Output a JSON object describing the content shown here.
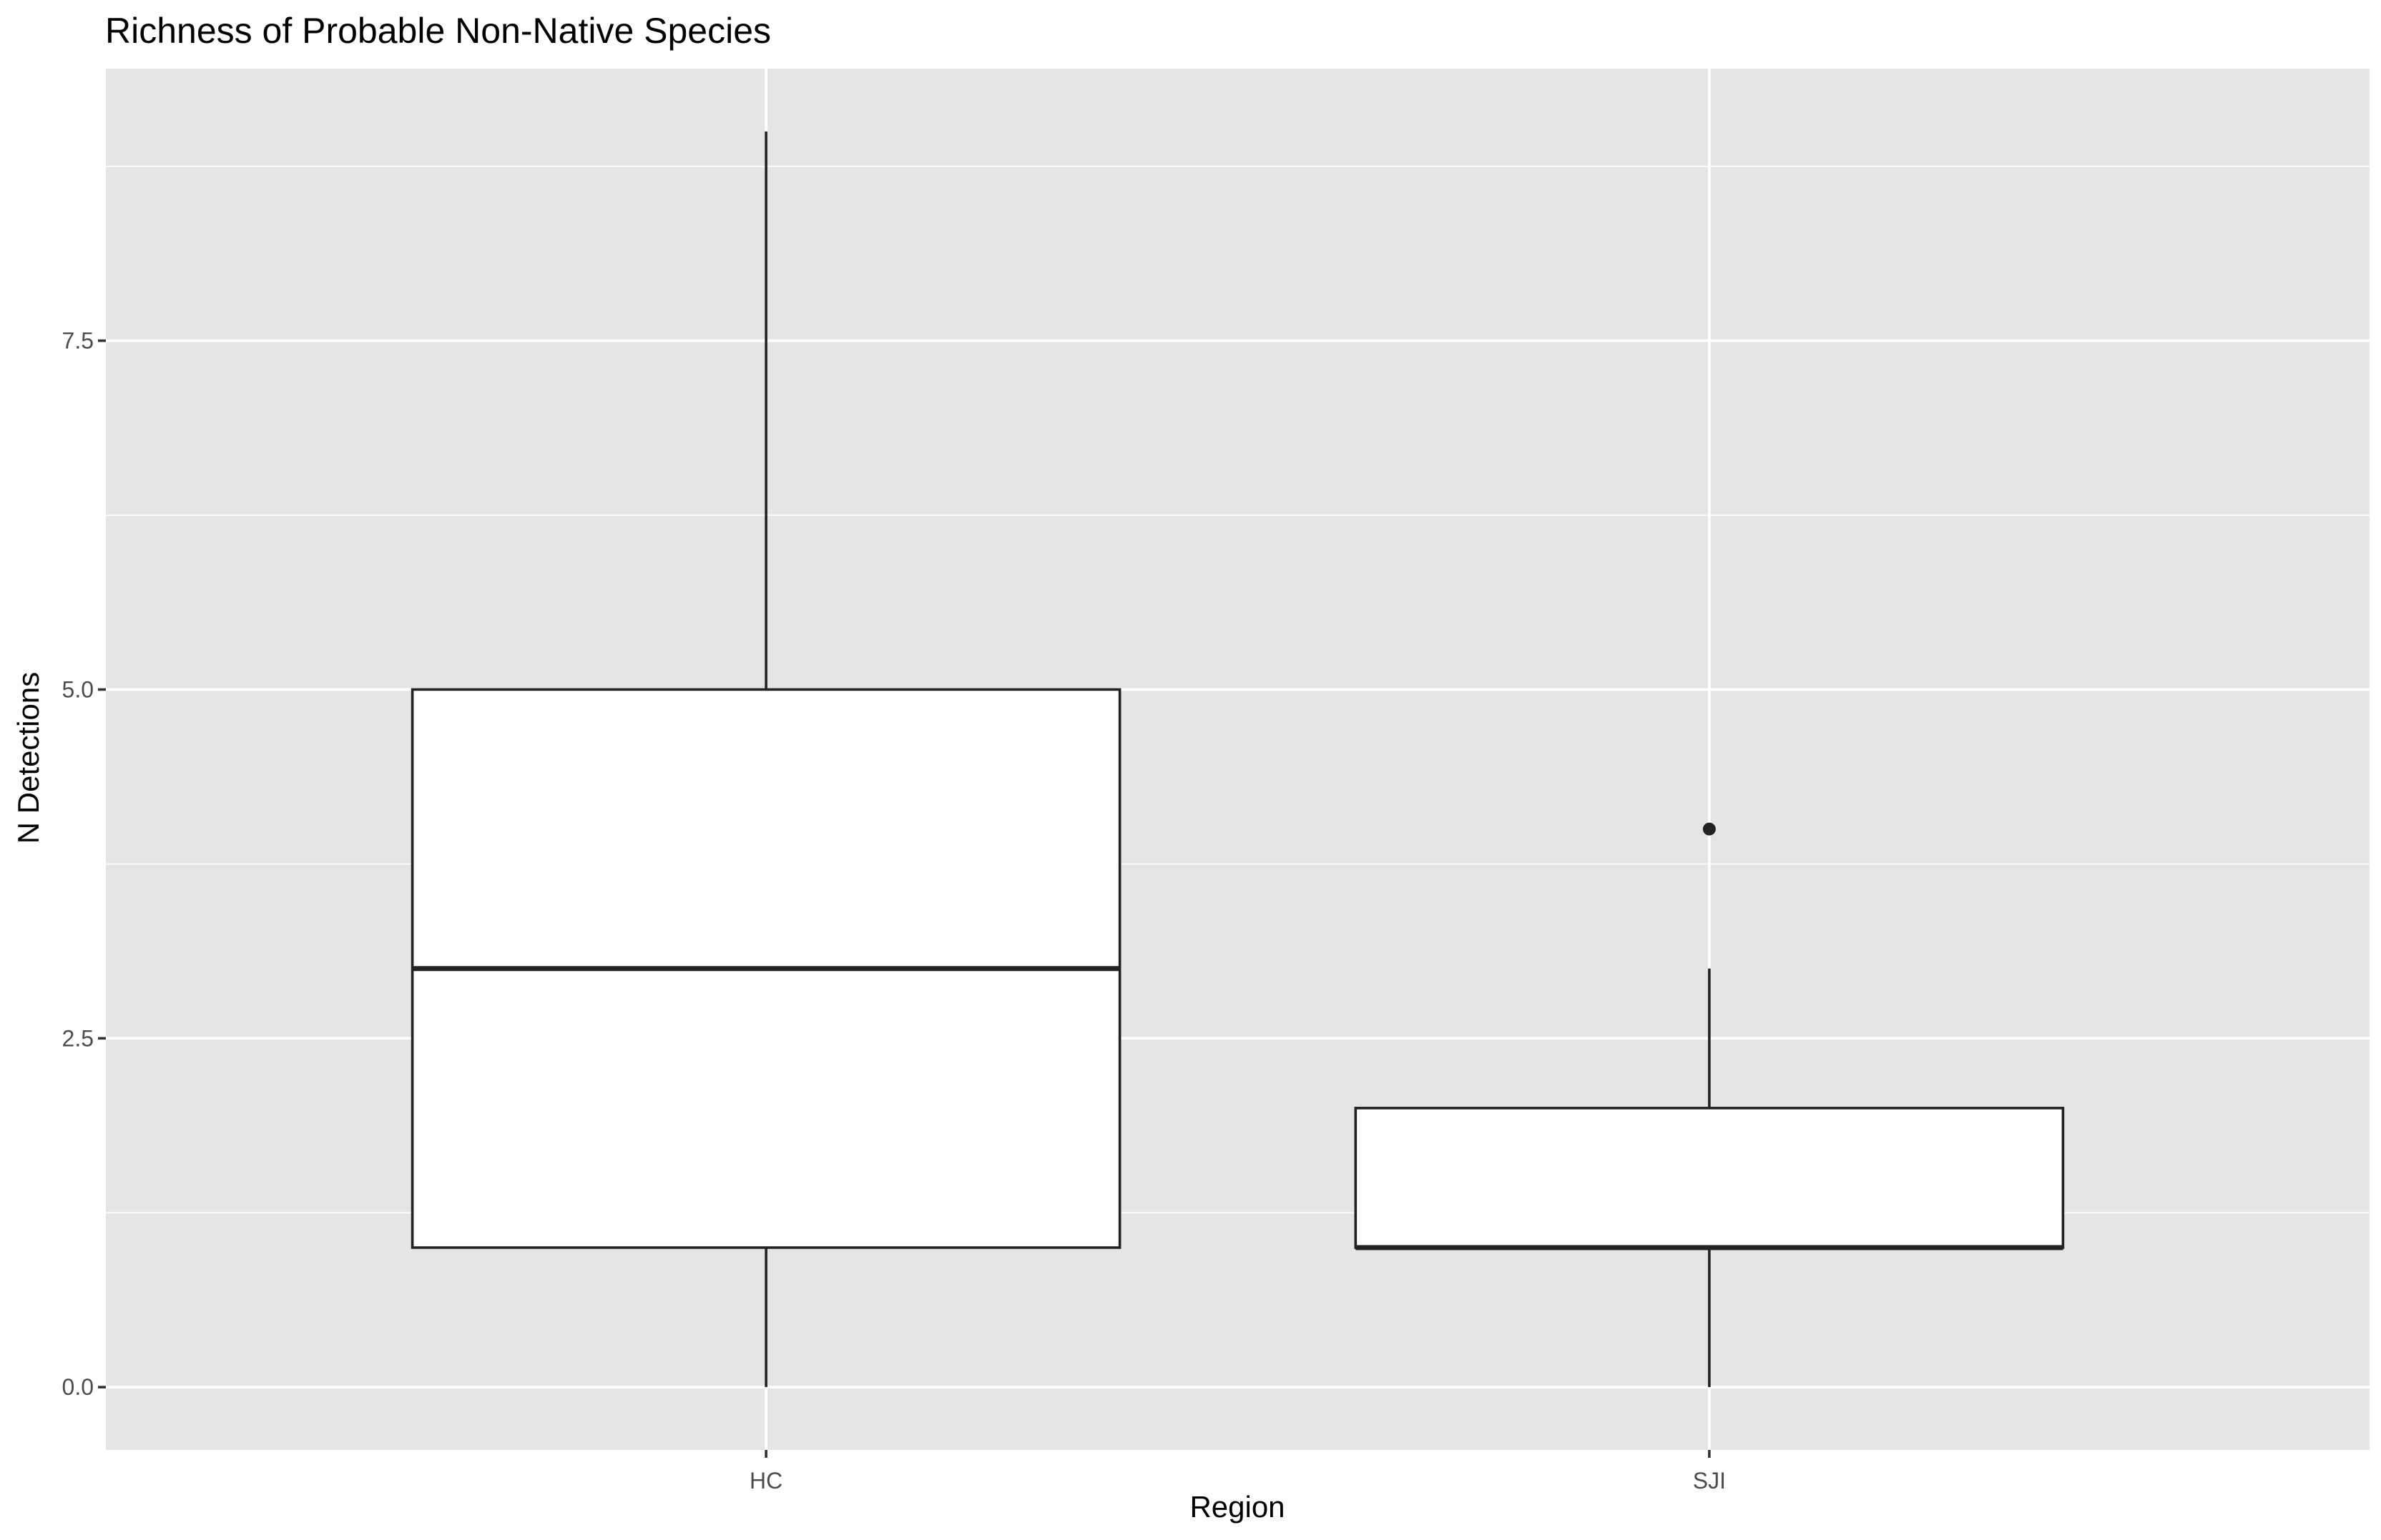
{
  "chart_data": {
    "type": "boxplot",
    "title": "Richness of Probable Non-Native Species",
    "xlabel": "Region",
    "ylabel": "N Detections",
    "categories": [
      "HC",
      "SJI"
    ],
    "boxes": [
      {
        "category": "HC",
        "whisker_low": 0,
        "q1": 1,
        "median": 3,
        "q3": 5,
        "whisker_high": 9,
        "outliers": []
      },
      {
        "category": "SJI",
        "whisker_low": 0,
        "q1": 1,
        "median": 1,
        "q3": 2,
        "whisker_high": 3,
        "outliers": [
          4
        ]
      }
    ],
    "ylim": [
      -0.45,
      9.45
    ],
    "y_ticks": [
      0,
      2.5,
      5,
      7.5
    ],
    "y_tick_labels": [
      "0.0",
      "2.5",
      "5.0",
      "7.5"
    ],
    "grid": true,
    "colors": {
      "panel": "#e5e5e5",
      "grid": "#ffffff",
      "box_fill": "#ffffff",
      "box_line": "#222222",
      "tick_text": "#4d4d4d"
    }
  }
}
